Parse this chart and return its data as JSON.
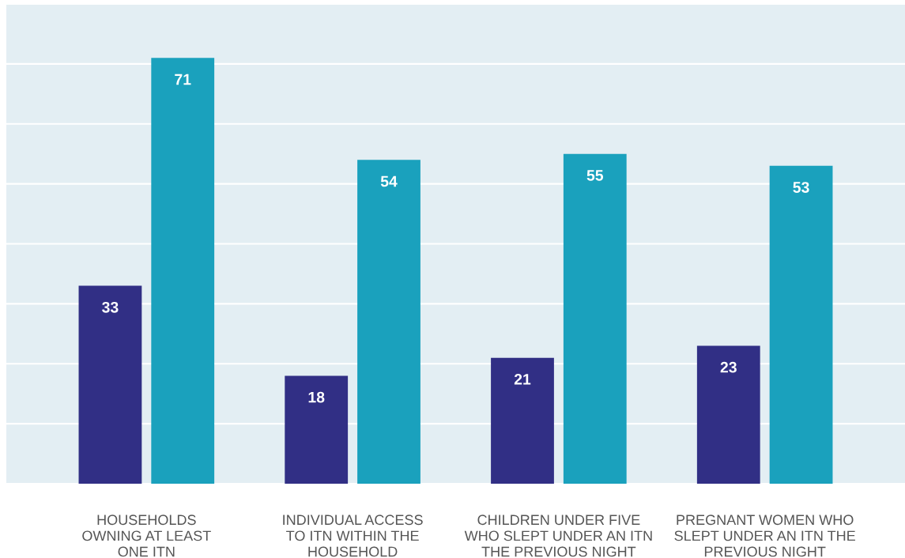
{
  "chart_data": {
    "type": "bar",
    "categories": [
      "HOUSEHOLDS\nOWNING AT LEAST\nONE ITN",
      "INDIVIDUAL ACCESS\nTO ITN WITHIN THE\nHOUSEHOLD",
      "CHILDREN UNDER FIVE\nWHO SLEPT UNDER AN ITN\nTHE PREVIOUS NIGHT",
      "PREGNANT WOMEN WHO\nSLEPT UNDER AN ITN THE\nPREVIOUS NIGHT"
    ],
    "series": [
      {
        "color": "#312f85",
        "values": [
          33,
          18,
          21,
          23
        ]
      },
      {
        "color": "#1aa1bd",
        "values": [
          71,
          54,
          55,
          53
        ]
      }
    ],
    "ylim": [
      0,
      80
    ],
    "yticks": [
      {
        "value": 0,
        "label": null
      },
      {
        "value": 10,
        "label": null
      },
      {
        "value": 20,
        "label": null
      },
      {
        "value": 30,
        "label": null
      },
      {
        "value": 40,
        "label": null
      },
      {
        "value": 50,
        "label": null
      },
      {
        "value": 60,
        "label": null
      },
      {
        "value": 70,
        "label": null
      },
      {
        "value": 80,
        "label": null
      }
    ],
    "grid": "y",
    "tick_labels": "x",
    "data_labels": true
  }
}
